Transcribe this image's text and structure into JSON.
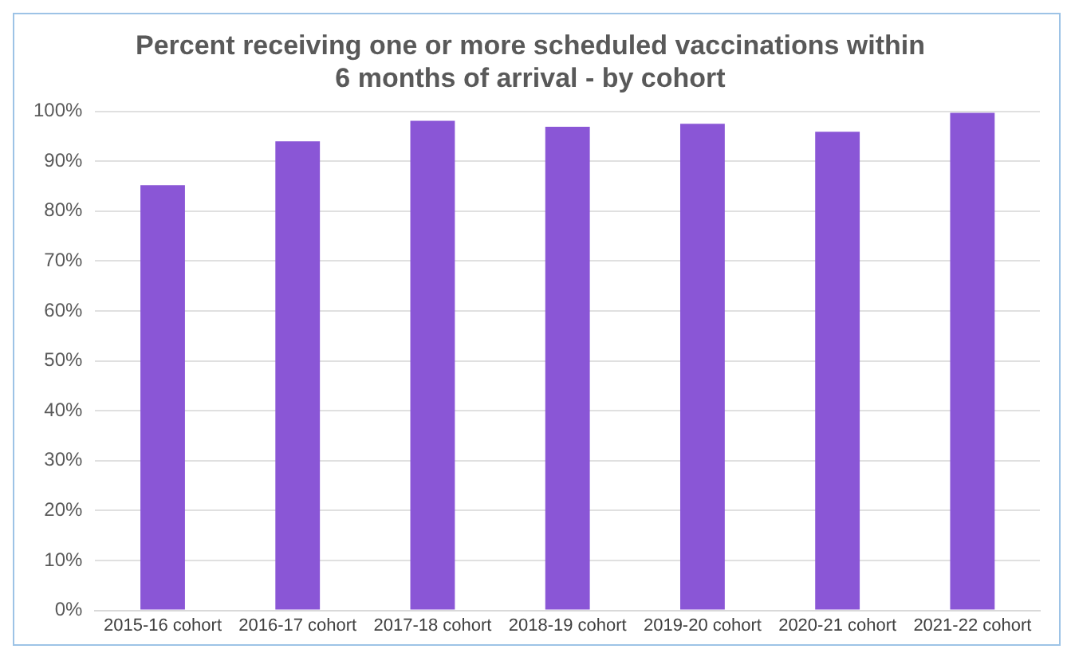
{
  "chart_data": {
    "type": "bar",
    "title": "Percent receiving one or more scheduled vaccinations within 6 months of arrival - by cohort",
    "categories": [
      "2015-16 cohort",
      "2016-17 cohort",
      "2017-18 cohort",
      "2018-19 cohort",
      "2019-20 cohort",
      "2020-21 cohort",
      "2021-22 cohort"
    ],
    "values": [
      85.2,
      94,
      98.1,
      96.9,
      97.5,
      95.9,
      99.7
    ],
    "color": "#8a56d6",
    "ylim": [
      0,
      100
    ],
    "yticks": [
      {
        "value": 0,
        "label": "0%"
      },
      {
        "value": 10,
        "label": "10%"
      },
      {
        "value": 20,
        "label": "20%"
      },
      {
        "value": 30,
        "label": "30%"
      },
      {
        "value": 40,
        "label": "40%"
      },
      {
        "value": 50,
        "label": "50%"
      },
      {
        "value": 60,
        "label": "60%"
      },
      {
        "value": 70,
        "label": "70%"
      },
      {
        "value": 80,
        "label": "80%"
      },
      {
        "value": 90,
        "label": "90%"
      },
      {
        "value": 100,
        "label": "100%"
      }
    ],
    "grid": "y",
    "legend": false
  }
}
